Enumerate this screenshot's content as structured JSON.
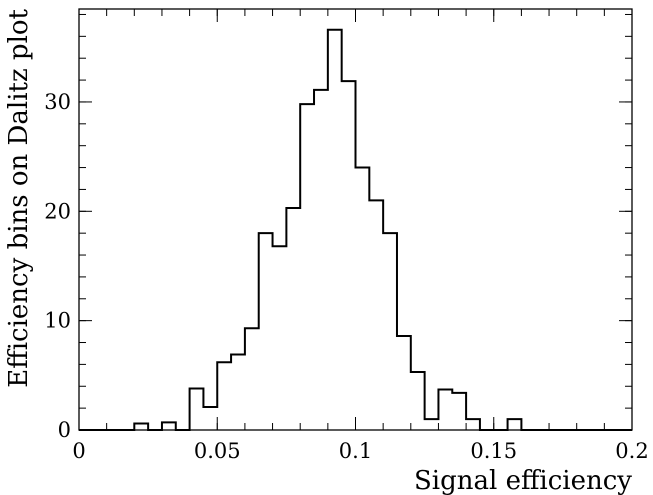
{
  "chart_data": {
    "type": "histogram",
    "xlabel": "Signal efficiency",
    "ylabel": "Efficiency bins on Dalitz plot",
    "xlim": [
      0,
      0.2
    ],
    "ylim": [
      0,
      38.5
    ],
    "bin_width": 0.005,
    "x_ticks": [
      0,
      0.05,
      0.1,
      0.15,
      0.2
    ],
    "x_tick_labels": [
      "0",
      "0.05",
      "0.1",
      "0.15",
      "0.2"
    ],
    "y_ticks": [
      0,
      10,
      20,
      30
    ],
    "y_tick_labels": [
      "0",
      "10",
      "20",
      "30"
    ],
    "grid": false,
    "bins": [
      {
        "x0": 0.0,
        "x1": 0.005,
        "y": 0
      },
      {
        "x0": 0.005,
        "x1": 0.01,
        "y": 0
      },
      {
        "x0": 0.01,
        "x1": 0.015,
        "y": 0
      },
      {
        "x0": 0.015,
        "x1": 0.02,
        "y": 0
      },
      {
        "x0": 0.02,
        "x1": 0.025,
        "y": 0.6
      },
      {
        "x0": 0.025,
        "x1": 0.03,
        "y": 0
      },
      {
        "x0": 0.03,
        "x1": 0.035,
        "y": 0.7
      },
      {
        "x0": 0.035,
        "x1": 0.04,
        "y": 0
      },
      {
        "x0": 0.04,
        "x1": 0.045,
        "y": 3.8
      },
      {
        "x0": 0.045,
        "x1": 0.05,
        "y": 2.1
      },
      {
        "x0": 0.05,
        "x1": 0.055,
        "y": 6.2
      },
      {
        "x0": 0.055,
        "x1": 0.06,
        "y": 6.9
      },
      {
        "x0": 0.06,
        "x1": 0.065,
        "y": 9.3
      },
      {
        "x0": 0.065,
        "x1": 0.07,
        "y": 18.0
      },
      {
        "x0": 0.07,
        "x1": 0.075,
        "y": 16.8
      },
      {
        "x0": 0.075,
        "x1": 0.08,
        "y": 20.3
      },
      {
        "x0": 0.08,
        "x1": 0.085,
        "y": 29.8
      },
      {
        "x0": 0.085,
        "x1": 0.09,
        "y": 31.1
      },
      {
        "x0": 0.09,
        "x1": 0.095,
        "y": 36.6
      },
      {
        "x0": 0.095,
        "x1": 0.1,
        "y": 31.9
      },
      {
        "x0": 0.1,
        "x1": 0.105,
        "y": 24.0
      },
      {
        "x0": 0.105,
        "x1": 0.11,
        "y": 21.0
      },
      {
        "x0": 0.11,
        "x1": 0.115,
        "y": 18.0
      },
      {
        "x0": 0.115,
        "x1": 0.12,
        "y": 8.6
      },
      {
        "x0": 0.12,
        "x1": 0.125,
        "y": 5.3
      },
      {
        "x0": 0.125,
        "x1": 0.13,
        "y": 1.0
      },
      {
        "x0": 0.13,
        "x1": 0.135,
        "y": 3.7
      },
      {
        "x0": 0.135,
        "x1": 0.14,
        "y": 3.4
      },
      {
        "x0": 0.14,
        "x1": 0.145,
        "y": 1.0
      },
      {
        "x0": 0.145,
        "x1": 0.15,
        "y": 0
      },
      {
        "x0": 0.15,
        "x1": 0.155,
        "y": 0
      },
      {
        "x0": 0.155,
        "x1": 0.16,
        "y": 1.0
      },
      {
        "x0": 0.16,
        "x1": 0.165,
        "y": 0
      },
      {
        "x0": 0.165,
        "x1": 0.17,
        "y": 0
      },
      {
        "x0": 0.17,
        "x1": 0.175,
        "y": 0
      },
      {
        "x0": 0.175,
        "x1": 0.18,
        "y": 0
      },
      {
        "x0": 0.18,
        "x1": 0.185,
        "y": 0
      },
      {
        "x0": 0.185,
        "x1": 0.19,
        "y": 0
      },
      {
        "x0": 0.19,
        "x1": 0.195,
        "y": 0
      },
      {
        "x0": 0.195,
        "x1": 0.2,
        "y": 0
      }
    ],
    "colors": {
      "line": "#000000",
      "background": "#ffffff"
    }
  }
}
